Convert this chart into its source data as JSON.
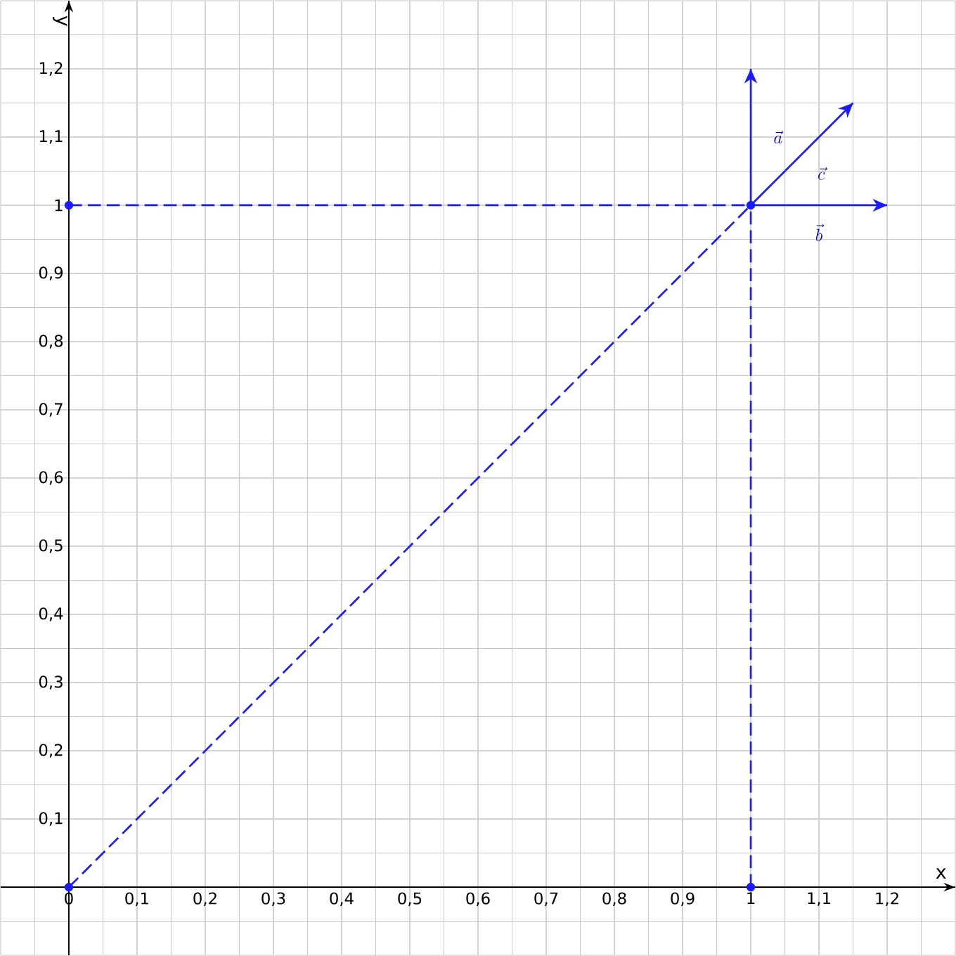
{
  "chart_data": {
    "type": "line",
    "xlabel": "x",
    "ylabel": "y",
    "xlim": [
      -0.1,
      1.3
    ],
    "ylim": [
      -0.1,
      1.3
    ],
    "xticks": [
      0,
      {
        "value": 0.1,
        "label": "0,1"
      },
      {
        "value": 0.2,
        "label": "0,2"
      },
      {
        "value": 0.3,
        "label": "0,3"
      },
      {
        "value": 0.4,
        "label": "0,4"
      },
      {
        "value": 0.5,
        "label": "0,5"
      },
      {
        "value": 0.6,
        "label": "0,6"
      },
      {
        "value": 0.7,
        "label": "0,7"
      },
      {
        "value": 0.8,
        "label": "0,8"
      },
      {
        "value": 0.9,
        "label": "0,9"
      },
      1,
      {
        "value": 1.1,
        "label": "1,1"
      },
      {
        "value": 1.2,
        "label": "1,2"
      }
    ],
    "yticks": [
      {
        "value": 0.1,
        "label": "0,1"
      },
      {
        "value": 0.2,
        "label": "0,2"
      },
      {
        "value": 0.3,
        "label": "0,3"
      },
      {
        "value": 0.4,
        "label": "0,4"
      },
      {
        "value": 0.5,
        "label": "0,5"
      },
      {
        "value": 0.6,
        "label": "0,6"
      },
      {
        "value": 0.7,
        "label": "0,7"
      },
      {
        "value": 0.8,
        "label": "0,8"
      },
      {
        "value": 0.9,
        "label": "0,9"
      },
      1,
      {
        "value": 1.1,
        "label": "1,1"
      },
      {
        "value": 1.2,
        "label": "1,2"
      }
    ],
    "grid": true,
    "series": [
      {
        "color": "#1a1aff",
        "x": [
          0,
          1
        ],
        "values": [
          0,
          1
        ],
        "line_style": "dashed",
        "marker": "none"
      },
      {
        "color": "#1a1aff",
        "x": [
          0,
          1
        ],
        "values": [
          1,
          1
        ],
        "line_style": "dashed",
        "marker": "none"
      },
      {
        "color": "#1a1aff",
        "x": [
          1,
          1
        ],
        "values": [
          0,
          1
        ],
        "line_style": "dashed",
        "marker": "none"
      },
      {
        "color": "#1a1aff",
        "x": [
          1,
          1
        ],
        "values": [
          1,
          1.2
        ],
        "line_style": "solid",
        "marker": "none"
      },
      {
        "color": "#1a1aff",
        "x": [
          1,
          1.2
        ],
        "values": [
          1,
          1
        ],
        "line_style": "solid",
        "marker": "none"
      },
      {
        "color": "#1a1aff",
        "x": [
          1,
          1.15
        ],
        "values": [
          1,
          1.15
        ],
        "line_style": "solid",
        "marker": "none"
      },
      {
        "type": "scatter",
        "color": "#1a1aff",
        "x": [
          0,
          0,
          1,
          1
        ],
        "values": [
          0,
          1,
          1,
          0
        ],
        "marker": "circle"
      }
    ],
    "annotations": [
      "\\vec{a}",
      "\\vec{b}",
      "\\vec{c}"
    ]
  }
}
